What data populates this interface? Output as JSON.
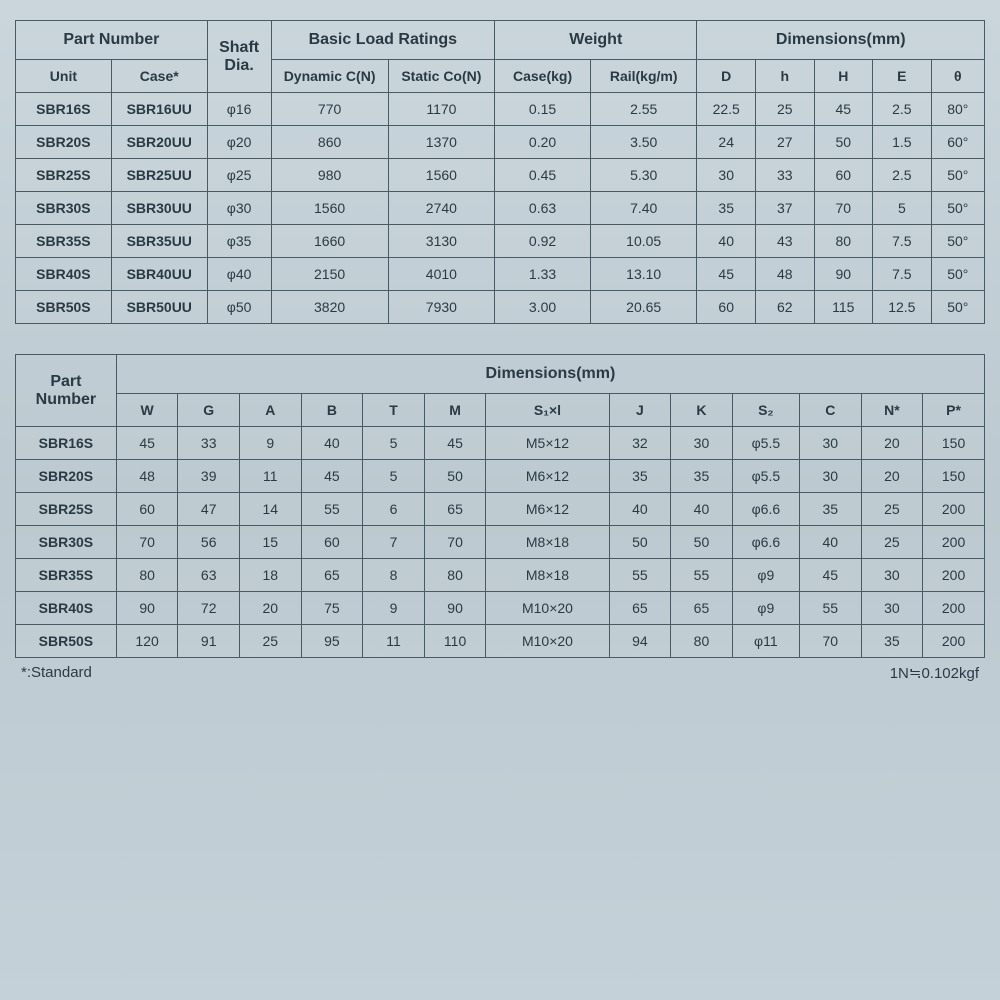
{
  "table1": {
    "header_groups": {
      "part_number": "Part Number",
      "shaft_dia": "Shaft Dia.",
      "load_ratings": "Basic Load Ratings",
      "weight": "Weight",
      "dimensions": "Dimensions(mm)"
    },
    "headers": {
      "unit": "Unit",
      "case": "Case*",
      "dynamic": "Dynamic C(N)",
      "static": "Static Co(N)",
      "case_kg": "Case(kg)",
      "rail_kgm": "Rail(kg/m)",
      "D": "D",
      "h": "h",
      "H": "H",
      "E": "E",
      "theta": "θ"
    },
    "rows": [
      {
        "unit": "SBR16S",
        "case": "SBR16UU",
        "dia": "φ16",
        "dyn": "770",
        "stat": "1170",
        "ckg": "0.15",
        "rkg": "2.55",
        "D": "22.5",
        "h": "25",
        "H": "45",
        "E": "2.5",
        "th": "80°"
      },
      {
        "unit": "SBR20S",
        "case": "SBR20UU",
        "dia": "φ20",
        "dyn": "860",
        "stat": "1370",
        "ckg": "0.20",
        "rkg": "3.50",
        "D": "24",
        "h": "27",
        "H": "50",
        "E": "1.5",
        "th": "60°"
      },
      {
        "unit": "SBR25S",
        "case": "SBR25UU",
        "dia": "φ25",
        "dyn": "980",
        "stat": "1560",
        "ckg": "0.45",
        "rkg": "5.30",
        "D": "30",
        "h": "33",
        "H": "60",
        "E": "2.5",
        "th": "50°"
      },
      {
        "unit": "SBR30S",
        "case": "SBR30UU",
        "dia": "φ30",
        "dyn": "1560",
        "stat": "2740",
        "ckg": "0.63",
        "rkg": "7.40",
        "D": "35",
        "h": "37",
        "H": "70",
        "E": "5",
        "th": "50°"
      },
      {
        "unit": "SBR35S",
        "case": "SBR35UU",
        "dia": "φ35",
        "dyn": "1660",
        "stat": "3130",
        "ckg": "0.92",
        "rkg": "10.05",
        "D": "40",
        "h": "43",
        "H": "80",
        "E": "7.5",
        "th": "50°"
      },
      {
        "unit": "SBR40S",
        "case": "SBR40UU",
        "dia": "φ40",
        "dyn": "2150",
        "stat": "4010",
        "ckg": "1.33",
        "rkg": "13.10",
        "D": "45",
        "h": "48",
        "H": "90",
        "E": "7.5",
        "th": "50°"
      },
      {
        "unit": "SBR50S",
        "case": "SBR50UU",
        "dia": "φ50",
        "dyn": "3820",
        "stat": "7930",
        "ckg": "3.00",
        "rkg": "20.65",
        "D": "60",
        "h": "62",
        "H": "115",
        "E": "12.5",
        "th": "50°"
      }
    ]
  },
  "table2": {
    "header_groups": {
      "part_number": "Part Number",
      "dimensions": "Dimensions(mm)"
    },
    "headers": {
      "W": "W",
      "G": "G",
      "A": "A",
      "B": "B",
      "T": "T",
      "M": "M",
      "S1xl": "S₁×l",
      "J": "J",
      "K": "K",
      "S2": "S₂",
      "C": "C",
      "N": "N*",
      "P": "P*"
    },
    "rows": [
      {
        "pn": "SBR16S",
        "W": "45",
        "G": "33",
        "A": "9",
        "B": "40",
        "T": "5",
        "M": "45",
        "S1": "M5×12",
        "J": "32",
        "K": "30",
        "S2": "φ5.5",
        "C": "30",
        "N": "20",
        "P": "150"
      },
      {
        "pn": "SBR20S",
        "W": "48",
        "G": "39",
        "A": "11",
        "B": "45",
        "T": "5",
        "M": "50",
        "S1": "M6×12",
        "J": "35",
        "K": "35",
        "S2": "φ5.5",
        "C": "30",
        "N": "20",
        "P": "150"
      },
      {
        "pn": "SBR25S",
        "W": "60",
        "G": "47",
        "A": "14",
        "B": "55",
        "T": "6",
        "M": "65",
        "S1": "M6×12",
        "J": "40",
        "K": "40",
        "S2": "φ6.6",
        "C": "35",
        "N": "25",
        "P": "200"
      },
      {
        "pn": "SBR30S",
        "W": "70",
        "G": "56",
        "A": "15",
        "B": "60",
        "T": "7",
        "M": "70",
        "S1": "M8×18",
        "J": "50",
        "K": "50",
        "S2": "φ6.6",
        "C": "40",
        "N": "25",
        "P": "200"
      },
      {
        "pn": "SBR35S",
        "W": "80",
        "G": "63",
        "A": "18",
        "B": "65",
        "T": "8",
        "M": "80",
        "S1": "M8×18",
        "J": "55",
        "K": "55",
        "S2": "φ9",
        "C": "45",
        "N": "30",
        "P": "200"
      },
      {
        "pn": "SBR40S",
        "W": "90",
        "G": "72",
        "A": "20",
        "B": "75",
        "T": "9",
        "M": "90",
        "S1": "M10×20",
        "J": "65",
        "K": "65",
        "S2": "φ9",
        "C": "55",
        "N": "30",
        "P": "200"
      },
      {
        "pn": "SBR50S",
        "W": "120",
        "G": "91",
        "A": "25",
        "B": "95",
        "T": "11",
        "M": "110",
        "S1": "M10×20",
        "J": "94",
        "K": "80",
        "S2": "φ11",
        "C": "70",
        "N": "35",
        "P": "200"
      }
    ]
  },
  "footnote": {
    "left": "*:Standard",
    "right": "1N≒0.102kgf"
  },
  "style": {
    "background": "#c8d4da",
    "border_color": "#4a5a64",
    "text_color": "#2a3a44",
    "header_fontsize": 16,
    "cell_fontsize": 14
  }
}
